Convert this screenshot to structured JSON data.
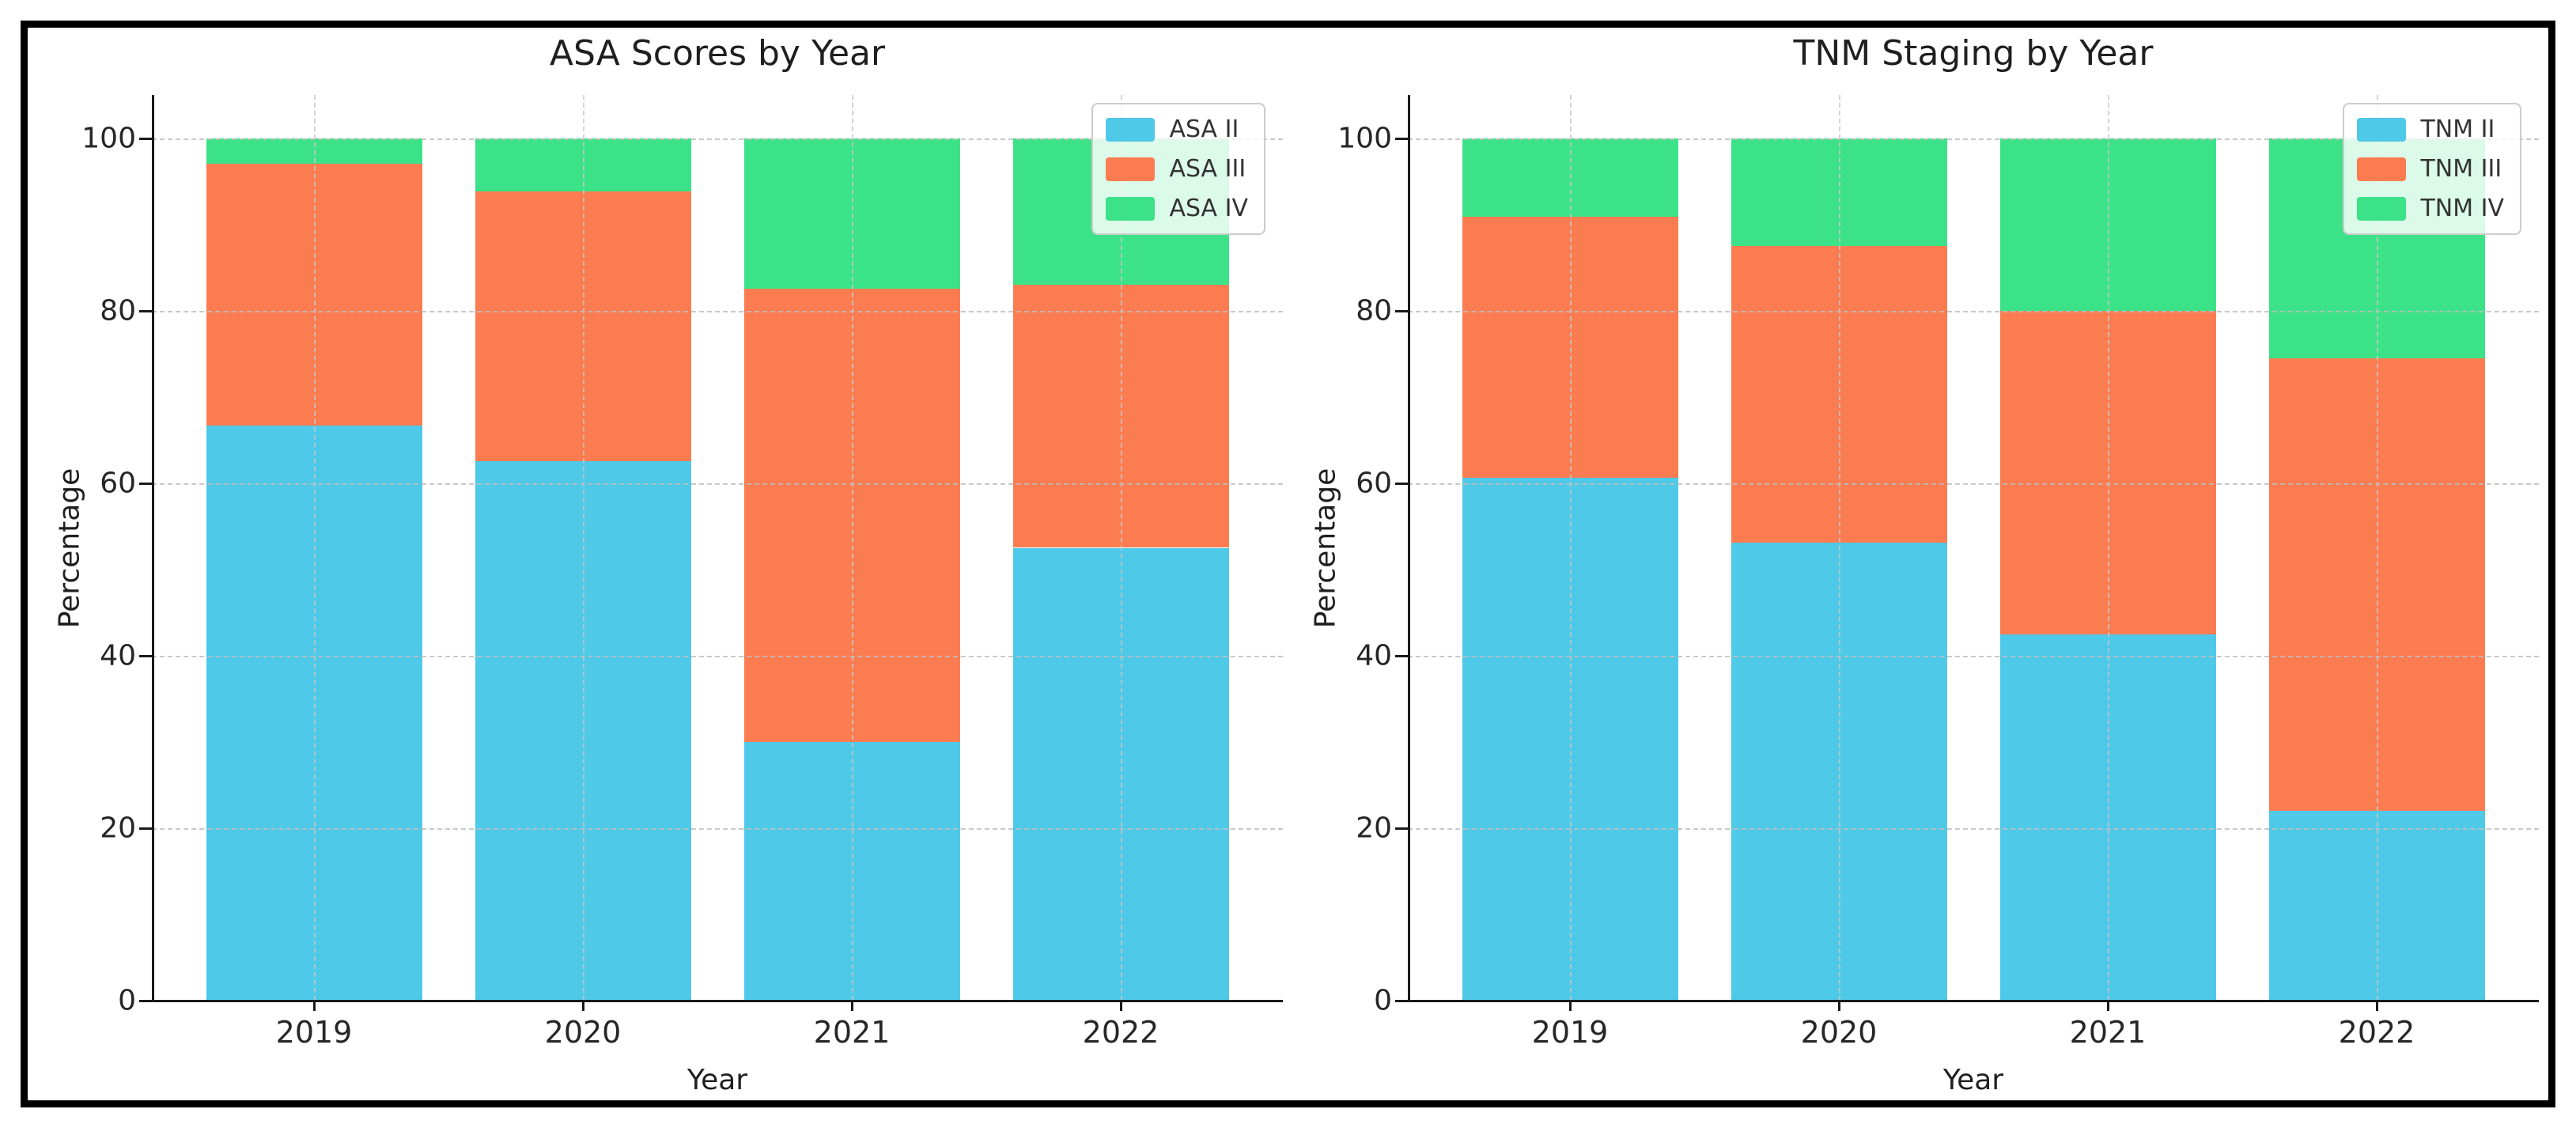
{
  "figure": {
    "frame_color": "#000000",
    "background": "#ffffff"
  },
  "colors": {
    "blue": "#4FC9E8",
    "orange": "#FB7C50",
    "green": "#3CE287",
    "grid": "#bebebe",
    "spine": "#1a1a1a",
    "text": "#1f1f1f",
    "legend_border": "#cccccc"
  },
  "chart_data": [
    {
      "type": "bar",
      "stacked": true,
      "title": "ASA Scores by Year",
      "xlabel": "Year",
      "ylabel": "Percentage",
      "categories": [
        "2019",
        "2020",
        "2021",
        "2022"
      ],
      "series": [
        {
          "name": "ASA II",
          "color_key": "blue",
          "values": [
            66.7,
            62.5,
            30.0,
            52.5
          ]
        },
        {
          "name": "ASA III",
          "color_key": "orange",
          "values": [
            30.3,
            31.3,
            52.5,
            30.5
          ]
        },
        {
          "name": "ASA IV",
          "color_key": "green",
          "values": [
            3.0,
            6.2,
            17.5,
            17.0
          ]
        }
      ],
      "yticks": [
        0,
        20,
        40,
        60,
        80,
        100
      ],
      "ylim": [
        0,
        105
      ],
      "grid": "dashed",
      "legend_position": "upper right"
    },
    {
      "type": "bar",
      "stacked": true,
      "title": "TNM Staging by Year",
      "xlabel": "Year",
      "ylabel": "Percentage",
      "categories": [
        "2019",
        "2020",
        "2021",
        "2022"
      ],
      "series": [
        {
          "name": "TNM II",
          "color_key": "blue",
          "values": [
            60.6,
            53.1,
            42.5,
            22.0
          ]
        },
        {
          "name": "TNM III",
          "color_key": "orange",
          "values": [
            30.3,
            34.4,
            37.5,
            52.5
          ]
        },
        {
          "name": "TNM IV",
          "color_key": "green",
          "values": [
            9.1,
            12.5,
            20.0,
            25.5
          ]
        }
      ],
      "yticks": [
        0,
        20,
        40,
        60,
        80,
        100
      ],
      "ylim": [
        0,
        105
      ],
      "grid": "dashed",
      "legend_position": "upper right"
    }
  ]
}
